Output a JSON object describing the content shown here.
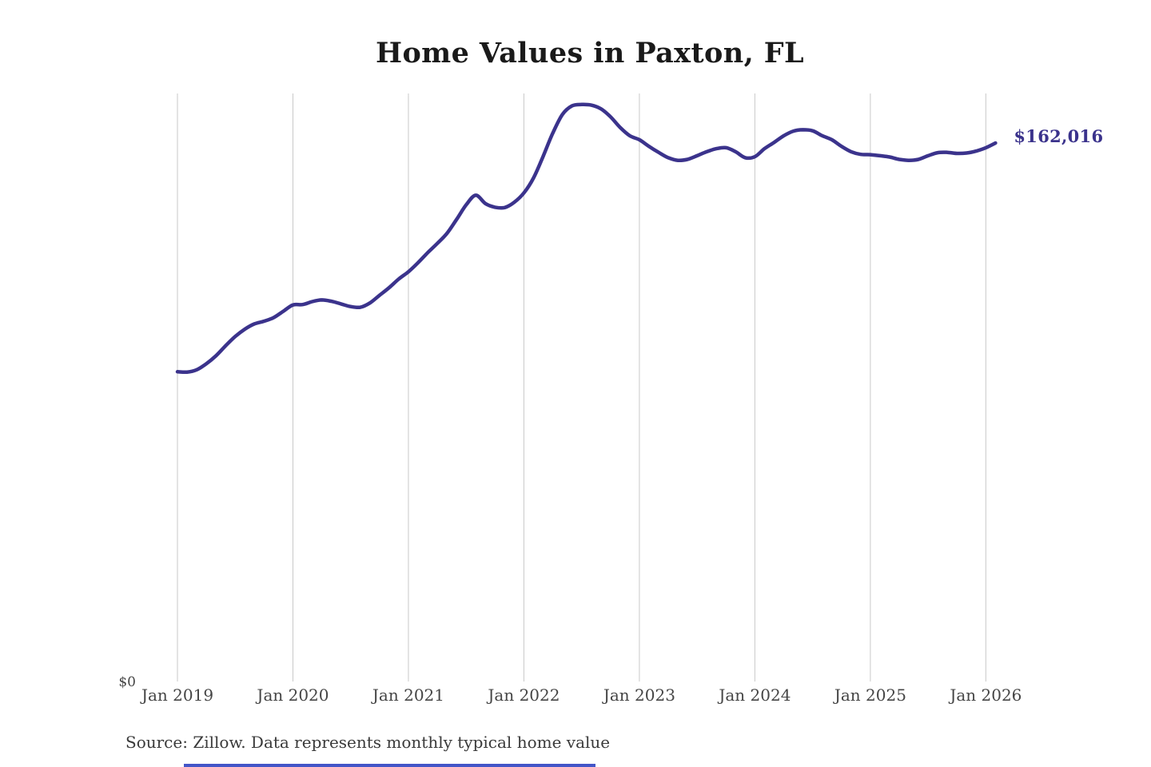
{
  "chart": {
    "title": "Home Values in Paxton, FL",
    "y_zero_label": "$0",
    "end_label": "$162,016",
    "source": "Source: Zillow. Data represents monthly typical home value",
    "colors": {
      "line": "#3b338c",
      "end_label": "#3b338c",
      "gridline": "#c9c9c9",
      "axis_text": "#454545",
      "title": "#1a1a1a",
      "source_text": "#3a3a3a",
      "accent_bar": "#4356c8",
      "background": "#ffffff"
    }
  },
  "chart_data": {
    "type": "line",
    "title": "Home Values in Paxton, FL",
    "series_name": "Typical home value",
    "frequency": "monthly",
    "start_month": "Jan 2019",
    "end_month": "Feb 2026",
    "x": [
      "2019-01",
      "2019-02",
      "2019-03",
      "2019-04",
      "2019-05",
      "2019-06",
      "2019-07",
      "2019-08",
      "2019-09",
      "2019-10",
      "2019-11",
      "2019-12",
      "2020-01",
      "2020-02",
      "2020-03",
      "2020-04",
      "2020-05",
      "2020-06",
      "2020-07",
      "2020-08",
      "2020-09",
      "2020-10",
      "2020-11",
      "2020-12",
      "2021-01",
      "2021-02",
      "2021-03",
      "2021-04",
      "2021-05",
      "2021-06",
      "2021-07",
      "2021-08",
      "2021-09",
      "2021-10",
      "2021-11",
      "2021-12",
      "2022-01",
      "2022-02",
      "2022-03",
      "2022-04",
      "2022-05",
      "2022-06",
      "2022-07",
      "2022-08",
      "2022-09",
      "2022-10",
      "2022-11",
      "2022-12",
      "2023-01",
      "2023-02",
      "2023-03",
      "2023-04",
      "2023-05",
      "2023-06",
      "2023-07",
      "2023-08",
      "2023-09",
      "2023-10",
      "2023-11",
      "2023-12",
      "2024-01",
      "2024-02",
      "2024-03",
      "2024-04",
      "2024-05",
      "2024-06",
      "2024-07",
      "2024-08",
      "2024-09",
      "2024-10",
      "2024-11",
      "2024-12",
      "2025-01",
      "2025-02",
      "2025-03",
      "2025-04",
      "2025-05",
      "2025-06",
      "2025-07",
      "2025-08",
      "2025-09",
      "2025-10",
      "2025-11",
      "2025-12",
      "2026-01",
      "2026-02"
    ],
    "values": [
      93200,
      93100,
      93800,
      95600,
      98000,
      101000,
      103800,
      106000,
      107600,
      108400,
      109500,
      111400,
      113300,
      113400,
      114300,
      114800,
      114400,
      113600,
      112800,
      112600,
      113900,
      116200,
      118500,
      121100,
      123300,
      126000,
      129000,
      131800,
      134800,
      139000,
      143400,
      146300,
      143800,
      142700,
      142600,
      144200,
      147000,
      151500,
      158000,
      165000,
      170600,
      173200,
      173600,
      173400,
      172300,
      169900,
      166700,
      164200,
      163000,
      161000,
      159200,
      157600,
      156800,
      157100,
      158200,
      159400,
      160300,
      160600,
      159400,
      157600,
      157900,
      160300,
      162200,
      164200,
      165600,
      166000,
      165700,
      164200,
      163000,
      161000,
      159400,
      158600,
      158500,
      158200,
      157800,
      157100,
      156800,
      157100,
      158200,
      159100,
      159200,
      158900,
      159000,
      159600,
      160600,
      162016
    ],
    "x_ticks": [
      "Jan 2019",
      "Jan 2020",
      "Jan 2021",
      "Jan 2022",
      "Jan 2023",
      "Jan 2024",
      "Jan 2025",
      "Jan 2026"
    ],
    "xlabel": "",
    "ylabel": "",
    "y_axis": {
      "min": 0,
      "zero_tick_label": "$0",
      "horizontal_gridlines": false
    },
    "grid": "vertical-only",
    "legend": "none",
    "end_value": 162016,
    "end_value_label": "$162,016",
    "source": "Source: Zillow. Data represents monthly typical home value"
  }
}
